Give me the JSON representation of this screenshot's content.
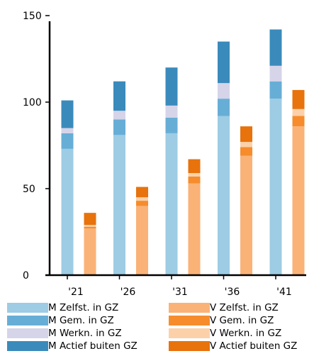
{
  "chart_data": {
    "type": "bar",
    "stacked": true,
    "categories": [
      "'21",
      "'26",
      "'31",
      "'36",
      "'41"
    ],
    "ylim": [
      0,
      150
    ],
    "yticks": [
      0,
      50,
      100,
      150
    ],
    "groups": [
      {
        "name": "M",
        "series": [
          {
            "name": "M Zelfst. in GZ",
            "color": "#9dcce4",
            "values": [
              73,
              81,
              82,
              92,
              102
            ]
          },
          {
            "name": "M Gem. in GZ",
            "color": "#67aed6",
            "values": [
              9,
              9,
              9,
              10,
              10
            ]
          },
          {
            "name": "M Werkn. in GZ",
            "color": "#d6d4e9",
            "values": [
              3,
              5,
              7,
              9,
              9
            ]
          },
          {
            "name": "M Actief buiten GZ",
            "color": "#3a8bbb",
            "values": [
              16,
              17,
              22,
              24,
              21
            ]
          }
        ]
      },
      {
        "name": "V",
        "series": [
          {
            "name": "V Zelfst. in GZ",
            "color": "#fbb277",
            "values": [
              27,
              40,
              53,
              69,
              86
            ]
          },
          {
            "name": "V Gem. in GZ",
            "color": "#f68c2c",
            "values": [
              1,
              3,
              4,
              5,
              6
            ]
          },
          {
            "name": "V Werkn. in GZ",
            "color": "#fcd1a9",
            "values": [
              1,
              2,
              2,
              3,
              4
            ]
          },
          {
            "name": "V Actief buiten GZ",
            "color": "#e8720c",
            "values": [
              7,
              6,
              8,
              9,
              11
            ]
          }
        ]
      }
    ]
  }
}
